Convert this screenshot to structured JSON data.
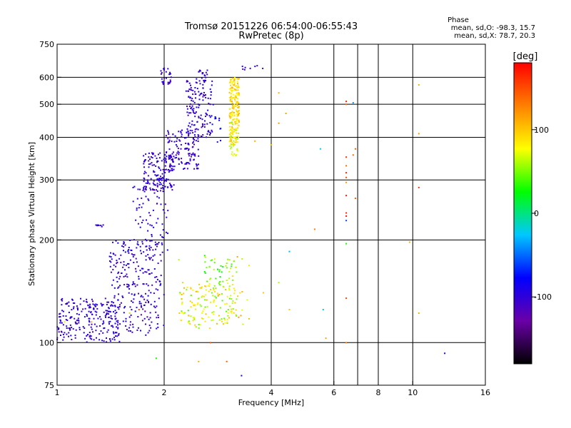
{
  "chart_data": {
    "type": "scatter",
    "title": "Tromsø 20151226 06:54:00-06:55:43",
    "subtitle": "RwPretec (8p)",
    "xlabel": "Frequency [MHz]",
    "ylabel": "Stationary phase Virtual Height [km]",
    "x_scale": "log",
    "y_scale": "log",
    "xlim": [
      1,
      16
    ],
    "ylim": [
      75,
      750
    ],
    "x_ticks": [
      "1",
      "2",
      "4",
      "6",
      "8",
      "10",
      "16"
    ],
    "x_tick_values": [
      1,
      2,
      4,
      6,
      8,
      10,
      16
    ],
    "x_grid_values": [
      2,
      4,
      6,
      7,
      8,
      10
    ],
    "y_ticks": [
      "75",
      "100",
      "200",
      "300",
      "400",
      "500",
      "600",
      "750"
    ],
    "y_tick_values": [
      75,
      100,
      200,
      300,
      400,
      500,
      600,
      750
    ],
    "y_grid_values": [
      100,
      200,
      300,
      400,
      500,
      600
    ],
    "grid": true,
    "phase_legend": {
      "heading": "Phase",
      "line_o": "mean, sd,O: -98.3, 15.7",
      "line_x": "mean, sd,X: 78.7, 20.3"
    },
    "colorbar": {
      "label": "[deg]",
      "range": [
        -180,
        180
      ],
      "ticks": [
        "-100",
        "0",
        "100"
      ],
      "tick_values": [
        -100,
        0,
        100
      ],
      "colors": [
        "#000000",
        "#6a00a8",
        "#0000ff",
        "#00c8ff",
        "#00ff00",
        "#ffff00",
        "#ff8000",
        "#ff0000"
      ]
    },
    "series": [
      {
        "clusters": [
          {
            "x": [
              1.0,
              1.5
            ],
            "y": [
              100,
              135
            ],
            "phase": [
              -110,
              -90
            ],
            "n": 240
          },
          {
            "x": [
              1.4,
              2.0
            ],
            "y": [
              105,
              200
            ],
            "phase": [
              -115,
              -85
            ],
            "n": 260
          },
          {
            "x": [
              1.6,
              2.05
            ],
            "y": [
              180,
              300
            ],
            "phase": [
              -112,
              -88
            ],
            "n": 80
          },
          {
            "x": [
              1.75,
              2.15
            ],
            "y": [
              280,
              360
            ],
            "phase": [
              -112,
              -90
            ],
            "n": 150
          },
          {
            "x": [
              2.0,
              2.5
            ],
            "y": [
              320,
              420
            ],
            "phase": [
              -115,
              -90
            ],
            "n": 130
          },
          {
            "x": [
              2.3,
              2.75
            ],
            "y": [
              400,
              600
            ],
            "phase": [
              -110,
              -90
            ],
            "n": 140
          },
          {
            "x": [
              1.95,
              2.1
            ],
            "y": [
              570,
              640
            ],
            "phase": [
              -110,
              -95
            ],
            "n": 30
          },
          {
            "x": [
              2.5,
              2.65
            ],
            "y": [
              580,
              640
            ],
            "phase": [
              -110,
              -95
            ],
            "n": 20
          },
          {
            "x": [
              1.25,
              1.35
            ],
            "y": [
              218,
              222
            ],
            "phase": [
              -105,
              -95
            ],
            "n": 8
          },
          {
            "x": [
              3.3,
              4.0
            ],
            "y": [
              630,
              650
            ],
            "phase": [
              -110,
              -95
            ],
            "n": 8
          },
          {
            "x": [
              2.7,
              2.9
            ],
            "y": [
              380,
              470
            ],
            "phase": [
              -90,
              -70
            ],
            "n": 12
          }
        ]
      },
      {
        "clusters": [
          {
            "x": [
              3.05,
              3.25
            ],
            "y": [
              380,
              600
            ],
            "phase": [
              75,
              110
            ],
            "n": 200
          },
          {
            "x": [
              3.05,
              3.25
            ],
            "y": [
              350,
              450
            ],
            "phase": [
              50,
              80
            ],
            "n": 30
          },
          {
            "x": [
              2.2,
              3.2
            ],
            "y": [
              110,
              150
            ],
            "phase": [
              40,
              110
            ],
            "n": 160
          },
          {
            "x": [
              2.6,
              3.2
            ],
            "y": [
              150,
              180
            ],
            "phase": [
              20,
              70
            ],
            "n": 40
          },
          {
            "x": [
              3.0,
              3.5
            ],
            "y": [
              110,
              180
            ],
            "phase": [
              60,
              120
            ],
            "n": 20
          }
        ]
      }
    ],
    "scattered_points": [
      {
        "x": 1.05,
        "y": 115,
        "phase": 90
      },
      {
        "x": 1.25,
        "y": 115,
        "phase": 110
      },
      {
        "x": 1.6,
        "y": 122,
        "phase": 100
      },
      {
        "x": 1.7,
        "y": 125,
        "phase": 150
      },
      {
        "x": 1.9,
        "y": 90,
        "phase": 30
      },
      {
        "x": 4.2,
        "y": 540,
        "phase": 110
      },
      {
        "x": 4.2,
        "y": 440,
        "phase": 120
      },
      {
        "x": 4.4,
        "y": 470,
        "phase": 115
      },
      {
        "x": 4.0,
        "y": 380,
        "phase": 105
      },
      {
        "x": 3.6,
        "y": 390,
        "phase": 110
      },
      {
        "x": 4.5,
        "y": 185,
        "phase": -30
      },
      {
        "x": 4.2,
        "y": 150,
        "phase": 60
      },
      {
        "x": 3.8,
        "y": 140,
        "phase": 100
      },
      {
        "x": 4.5,
        "y": 125,
        "phase": 100
      },
      {
        "x": 5.3,
        "y": 215,
        "phase": 130
      },
      {
        "x": 5.6,
        "y": 125,
        "phase": -20
      },
      {
        "x": 5.7,
        "y": 103,
        "phase": 115
      },
      {
        "x": 5.5,
        "y": 370,
        "phase": -20
      },
      {
        "x": 6.5,
        "y": 510,
        "phase": 170
      },
      {
        "x": 6.5,
        "y": 500,
        "phase": 140
      },
      {
        "x": 6.8,
        "y": 505,
        "phase": -40
      },
      {
        "x": 6.5,
        "y": 350,
        "phase": 160
      },
      {
        "x": 6.5,
        "y": 330,
        "phase": 140
      },
      {
        "x": 6.5,
        "y": 315,
        "phase": 165
      },
      {
        "x": 6.5,
        "y": 305,
        "phase": 150
      },
      {
        "x": 6.5,
        "y": 295,
        "phase": 120
      },
      {
        "x": 6.5,
        "y": 270,
        "phase": 170
      },
      {
        "x": 6.5,
        "y": 240,
        "phase": 165
      },
      {
        "x": 6.5,
        "y": 235,
        "phase": 175
      },
      {
        "x": 6.5,
        "y": 228,
        "phase": -60
      },
      {
        "x": 6.5,
        "y": 195,
        "phase": 30
      },
      {
        "x": 6.5,
        "y": 135,
        "phase": 150
      },
      {
        "x": 6.5,
        "y": 100,
        "phase": 130
      },
      {
        "x": 6.9,
        "y": 370,
        "phase": 140
      },
      {
        "x": 6.8,
        "y": 355,
        "phase": 140
      },
      {
        "x": 6.9,
        "y": 265,
        "phase": 140
      },
      {
        "x": 9.8,
        "y": 197,
        "phase": 110
      },
      {
        "x": 10.4,
        "y": 570,
        "phase": 110
      },
      {
        "x": 10.4,
        "y": 410,
        "phase": 120
      },
      {
        "x": 10.4,
        "y": 285,
        "phase": 160
      },
      {
        "x": 10.4,
        "y": 122,
        "phase": 110
      },
      {
        "x": 12.3,
        "y": 93,
        "phase": -90
      },
      {
        "x": 3.0,
        "y": 88,
        "phase": 140
      },
      {
        "x": 3.3,
        "y": 80,
        "phase": -90
      },
      {
        "x": 2.7,
        "y": 100,
        "phase": 150
      },
      {
        "x": 2.5,
        "y": 88,
        "phase": 110
      },
      {
        "x": 2.2,
        "y": 175,
        "phase": 60
      },
      {
        "x": 2.6,
        "y": 180,
        "phase": 30
      }
    ]
  }
}
